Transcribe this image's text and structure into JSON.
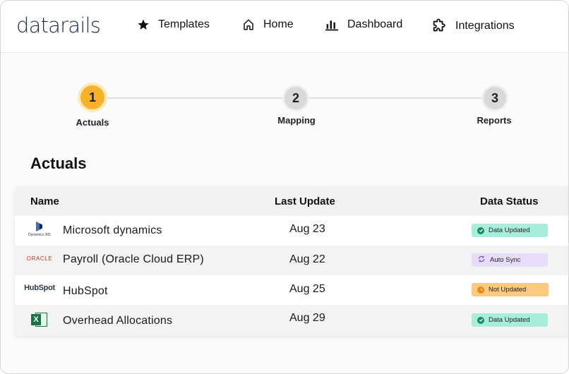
{
  "brand": {
    "name": "datarails",
    "accent_color": "#f6a623",
    "text_color": "#1e2a4a"
  },
  "nav": [
    {
      "label": "Templates",
      "icon": "star-icon"
    },
    {
      "label": "Home",
      "icon": "home-icon"
    },
    {
      "label": "Dashboard",
      "icon": "bar-chart-icon"
    },
    {
      "label": "Integrations",
      "icon": "puzzle-icon"
    }
  ],
  "stepper": [
    {
      "number": "1",
      "label": "Actuals",
      "state": "active"
    },
    {
      "number": "2",
      "label": "Mapping",
      "state": "idle"
    },
    {
      "number": "3",
      "label": "Reports",
      "state": "idle"
    }
  ],
  "section_title": "Actuals",
  "table": {
    "headers": {
      "name": "Name",
      "last_update": "Last Update",
      "data_status": "Data Status"
    },
    "rows": [
      {
        "logo": "dynamics365-logo",
        "logo_text": "Dynamics 365",
        "name": "Microsoft dynamics",
        "date": "Aug 23",
        "status": "Data Updated",
        "status_color": "green"
      },
      {
        "logo": "oracle-logo",
        "logo_text": "ORACLE",
        "name": "Payroll (Oracle Cloud ERP)",
        "date": "Aug 22",
        "status": "Auto Sync",
        "status_color": "purple"
      },
      {
        "logo": "hubspot-logo",
        "logo_text": "HubSpot",
        "name": "HubSpot",
        "date": "Aug 25",
        "status": "Not Updated",
        "status_color": "orange"
      },
      {
        "logo": "excel-logo",
        "logo_text": "X",
        "name": "Overhead Allocations",
        "date": "Aug 29",
        "status": "Data Updated",
        "status_color": "green"
      }
    ]
  },
  "colors": {
    "step_active": "#f7b22c",
    "step_idle": "#d9d9d9",
    "badge_green": "#a8ecdb",
    "badge_purple": "#e7ddfb",
    "badge_orange": "#fbc982"
  }
}
